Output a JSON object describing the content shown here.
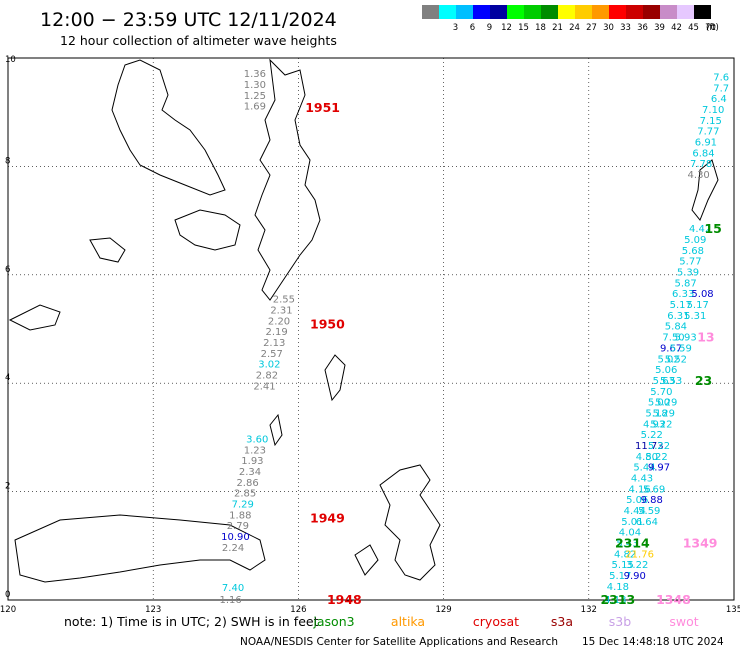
{
  "header": {
    "title": "12:00 − 23:59 UTC 12/11/2024",
    "subtitle": "12 hour collection of altimeter wave heights"
  },
  "legend": {
    "unit": "(ft)",
    "bins": [
      {
        "label": "",
        "color": "#808080"
      },
      {
        "label": "3",
        "color": "#00ffff"
      },
      {
        "label": "6",
        "color": "#00bfff"
      },
      {
        "label": "9",
        "color": "#0000ff"
      },
      {
        "label": "12",
        "color": "#0000a0"
      },
      {
        "label": "15",
        "color": "#00ff00"
      },
      {
        "label": "18",
        "color": "#00cc00"
      },
      {
        "label": "21",
        "color": "#008c00"
      },
      {
        "label": "24",
        "color": "#ffff00"
      },
      {
        "label": "27",
        "color": "#ffcc00"
      },
      {
        "label": "30",
        "color": "#ff9900"
      },
      {
        "label": "33",
        "color": "#ff0000"
      },
      {
        "label": "36",
        "color": "#cc0000"
      },
      {
        "label": "39",
        "color": "#990000"
      },
      {
        "label": "42",
        "color": "#c88cc8"
      },
      {
        "label": "45",
        "color": "#e6c8ff"
      },
      {
        "label": "70",
        "color": "#000000"
      }
    ]
  },
  "map": {
    "lon_range": [
      120,
      135
    ],
    "lat_range": [
      0,
      10
    ],
    "lon_ticks": [
      120,
      123,
      126,
      129,
      132,
      135
    ],
    "lat_ticks": [
      0,
      2,
      4,
      6,
      8,
      10
    ],
    "grid": true
  },
  "tracks": [
    {
      "pass": "1951",
      "pass_lon": 126.5,
      "pass_lat": 9.1,
      "pass_color": "#e00000",
      "points": [
        {
          "lon": 125.1,
          "lat": 9.72,
          "v": "1.36",
          "c": "#808080"
        },
        {
          "lon": 125.1,
          "lat": 9.52,
          "v": "1.30",
          "c": "#808080"
        },
        {
          "lon": 125.1,
          "lat": 9.32,
          "v": "1.25",
          "c": "#808080"
        },
        {
          "lon": 125.1,
          "lat": 9.12,
          "v": "1.69",
          "c": "#808080"
        }
      ]
    },
    {
      "pass": "1950",
      "pass_lon": 126.6,
      "pass_lat": 5.1,
      "pass_color": "#e00000",
      "points": [
        {
          "lon": 125.7,
          "lat": 5.56,
          "v": "2.55",
          "c": "#808080"
        },
        {
          "lon": 125.65,
          "lat": 5.36,
          "v": "2.31",
          "c": "#808080"
        },
        {
          "lon": 125.6,
          "lat": 5.16,
          "v": "2.20",
          "c": "#808080"
        },
        {
          "lon": 125.55,
          "lat": 4.96,
          "v": "2.19",
          "c": "#808080"
        },
        {
          "lon": 125.5,
          "lat": 4.76,
          "v": "2.13",
          "c": "#808080"
        },
        {
          "lon": 125.45,
          "lat": 4.56,
          "v": "2.57",
          "c": "#808080"
        },
        {
          "lon": 125.4,
          "lat": 4.36,
          "v": "3.02",
          "c": "#00c8dc"
        },
        {
          "lon": 125.35,
          "lat": 4.16,
          "v": "2.82",
          "c": "#808080"
        },
        {
          "lon": 125.3,
          "lat": 3.96,
          "v": "2.41",
          "c": "#808080"
        }
      ]
    },
    {
      "pass": "1949",
      "pass_lon": 126.6,
      "pass_lat": 1.52,
      "pass_color": "#e00000",
      "points": [
        {
          "lon": 125.15,
          "lat": 2.98,
          "v": "3.60",
          "c": "#00c8dc"
        },
        {
          "lon": 125.1,
          "lat": 2.78,
          "v": "1.23",
          "c": "#808080"
        },
        {
          "lon": 125.05,
          "lat": 2.58,
          "v": "1.93",
          "c": "#808080"
        },
        {
          "lon": 125.0,
          "lat": 2.38,
          "v": "2.34",
          "c": "#808080"
        },
        {
          "lon": 124.95,
          "lat": 2.18,
          "v": "2.86",
          "c": "#808080"
        },
        {
          "lon": 124.9,
          "lat": 1.98,
          "v": "2.85",
          "c": "#808080"
        },
        {
          "lon": 124.85,
          "lat": 1.78,
          "v": "7.29",
          "c": "#00c8dc"
        },
        {
          "lon": 124.8,
          "lat": 1.58,
          "v": "1.88",
          "c": "#808080"
        },
        {
          "lon": 124.75,
          "lat": 1.38,
          "v": "2.79",
          "c": "#808080"
        },
        {
          "lon": 124.7,
          "lat": 1.18,
          "v": "10.90",
          "c": "#0000cc"
        },
        {
          "lon": 124.65,
          "lat": 0.98,
          "v": "2.24",
          "c": "#808080"
        }
      ]
    },
    {
      "pass": "1948",
      "pass_lon": 126.95,
      "pass_lat": 0.02,
      "pass_color": "#e00000",
      "points": [
        {
          "lon": 124.65,
          "lat": 0.24,
          "v": "7.40",
          "c": "#00c8dc"
        },
        {
          "lon": 124.6,
          "lat": 0.02,
          "v": "1.16",
          "c": "#808080"
        }
      ]
    },
    {
      "pass": "",
      "pass_lon": 0,
      "pass_lat": 0,
      "pass_color": "#00c8dc",
      "points": [
        {
          "lon": 134.9,
          "lat": 9.66,
          "v": "7.6",
          "c": "#00c8dc"
        },
        {
          "lon": 134.9,
          "lat": 9.46,
          "v": "7.7",
          "c": "#00c8dc"
        },
        {
          "lon": 134.85,
          "lat": 9.26,
          "v": "6.4",
          "c": "#00c8dc"
        },
        {
          "lon": 134.8,
          "lat": 9.06,
          "v": "7.10",
          "c": "#00c8dc"
        },
        {
          "lon": 134.75,
          "lat": 8.86,
          "v": "7.15",
          "c": "#00c8dc"
        },
        {
          "lon": 134.7,
          "lat": 8.66,
          "v": "7.77",
          "c": "#00c8dc"
        },
        {
          "lon": 134.65,
          "lat": 8.46,
          "v": "6.91",
          "c": "#00c8dc"
        },
        {
          "lon": 134.6,
          "lat": 8.26,
          "v": "6.84",
          "c": "#00c8dc"
        },
        {
          "lon": 134.55,
          "lat": 8.06,
          "v": "7.78",
          "c": "#00c8dc"
        },
        {
          "lon": 134.5,
          "lat": 7.86,
          "v": "4.30",
          "c": "#808080"
        },
        {
          "lon": 134.3,
          "lat": 6.86,
          "v": "4.42",
          "c": "#00c8dc"
        },
        {
          "lon": 134.2,
          "lat": 6.66,
          "v": "5.09",
          "c": "#00c8dc"
        },
        {
          "lon": 134.15,
          "lat": 6.46,
          "v": "5.68",
          "c": "#00c8dc"
        },
        {
          "lon": 134.1,
          "lat": 6.26,
          "v": "5.77",
          "c": "#00c8dc"
        },
        {
          "lon": 134.05,
          "lat": 6.06,
          "v": "5.39",
          "c": "#00c8dc"
        },
        {
          "lon": 134.0,
          "lat": 5.86,
          "v": "5.87",
          "c": "#00c8dc"
        },
        {
          "lon": 133.95,
          "lat": 5.66,
          "v": "6.33",
          "c": "#00c8dc"
        },
        {
          "lon": 133.9,
          "lat": 5.46,
          "v": "5.17",
          "c": "#00c8dc"
        },
        {
          "lon": 133.85,
          "lat": 5.26,
          "v": "6.31",
          "c": "#00c8dc"
        },
        {
          "lon": 133.8,
          "lat": 5.06,
          "v": "5.84",
          "c": "#00c8dc"
        },
        {
          "lon": 133.75,
          "lat": 4.86,
          "v": "7.50",
          "c": "#00c8dc"
        },
        {
          "lon": 133.7,
          "lat": 4.66,
          "v": "9.67",
          "c": "#0000cc"
        },
        {
          "lon": 133.65,
          "lat": 4.46,
          "v": "5.02",
          "c": "#00c8dc"
        },
        {
          "lon": 133.6,
          "lat": 4.26,
          "v": "5.06",
          "c": "#00c8dc"
        },
        {
          "lon": 133.55,
          "lat": 4.06,
          "v": "5.63",
          "c": "#00c8dc"
        },
        {
          "lon": 133.5,
          "lat": 3.86,
          "v": "5.70",
          "c": "#00c8dc"
        },
        {
          "lon": 133.45,
          "lat": 3.66,
          "v": "5.00",
          "c": "#00c8dc"
        },
        {
          "lon": 133.4,
          "lat": 3.46,
          "v": "5.18",
          "c": "#00c8dc"
        },
        {
          "lon": 133.35,
          "lat": 3.26,
          "v": "4.93",
          "c": "#00c8dc"
        },
        {
          "lon": 133.3,
          "lat": 3.06,
          "v": "5.22",
          "c": "#00c8dc"
        },
        {
          "lon": 133.25,
          "lat": 2.86,
          "v": "11.73",
          "c": "#0000a0"
        },
        {
          "lon": 133.2,
          "lat": 2.66,
          "v": "4.80",
          "c": "#00c8dc"
        },
        {
          "lon": 133.15,
          "lat": 2.46,
          "v": "5.44",
          "c": "#00c8dc"
        },
        {
          "lon": 133.1,
          "lat": 2.26,
          "v": "4.43",
          "c": "#00c8dc"
        },
        {
          "lon": 133.05,
          "lat": 2.06,
          "v": "4.16",
          "c": "#00c8dc"
        },
        {
          "lon": 133.0,
          "lat": 1.86,
          "v": "5.06",
          "c": "#00c8dc"
        },
        {
          "lon": 132.95,
          "lat": 1.66,
          "v": "4.44",
          "c": "#00c8dc"
        },
        {
          "lon": 132.9,
          "lat": 1.46,
          "v": "5.01",
          "c": "#00c8dc"
        },
        {
          "lon": 132.85,
          "lat": 1.26,
          "v": "4.04",
          "c": "#00c8dc"
        },
        {
          "lon": 132.8,
          "lat": 1.06,
          "v": "5.43",
          "c": "#00c8dc"
        },
        {
          "lon": 132.75,
          "lat": 0.86,
          "v": "4.82",
          "c": "#00c8dc"
        },
        {
          "lon": 132.7,
          "lat": 0.66,
          "v": "5.15",
          "c": "#00c8dc"
        },
        {
          "lon": 132.65,
          "lat": 0.46,
          "v": "5.17",
          "c": "#00c8dc"
        },
        {
          "lon": 132.6,
          "lat": 0.26,
          "v": "4.18",
          "c": "#00c8dc"
        },
        {
          "lon": 132.55,
          "lat": 0.02,
          "v": "4.13",
          "c": "#00c8dc"
        }
      ]
    },
    {
      "pass": "",
      "pass_lon": 0,
      "pass_lat": 0,
      "pass_color": "#00c8dc",
      "points": [
        {
          "lon": 134.35,
          "lat": 5.66,
          "v": "5.08",
          "c": "#0000cc"
        },
        {
          "lon": 134.25,
          "lat": 5.46,
          "v": "5.17",
          "c": "#00c8dc"
        },
        {
          "lon": 134.2,
          "lat": 5.26,
          "v": "5.31",
          "c": "#00c8dc"
        },
        {
          "lon": 134.0,
          "lat": 4.86,
          "v": "5.93",
          "c": "#00c8dc"
        },
        {
          "lon": 133.9,
          "lat": 4.66,
          "v": "5.59",
          "c": "#00c8dc"
        },
        {
          "lon": 133.8,
          "lat": 4.46,
          "v": "5.52",
          "c": "#00c8dc"
        },
        {
          "lon": 133.7,
          "lat": 4.06,
          "v": "5.53",
          "c": "#00c8dc"
        },
        {
          "lon": 133.6,
          "lat": 3.66,
          "v": "5.29",
          "c": "#00c8dc"
        },
        {
          "lon": 133.55,
          "lat": 3.46,
          "v": "5.29",
          "c": "#00c8dc"
        },
        {
          "lon": 133.5,
          "lat": 3.26,
          "v": "5.22",
          "c": "#00c8dc"
        },
        {
          "lon": 133.45,
          "lat": 2.86,
          "v": "5.22",
          "c": "#00c8dc"
        },
        {
          "lon": 133.4,
          "lat": 2.66,
          "v": "5.22",
          "c": "#00c8dc"
        },
        {
          "lon": 133.45,
          "lat": 2.46,
          "v": "9.97",
          "c": "#0000cc"
        },
        {
          "lon": 133.35,
          "lat": 2.06,
          "v": "5.69",
          "c": "#00c8dc"
        },
        {
          "lon": 133.3,
          "lat": 1.86,
          "v": "9.88",
          "c": "#0000cc"
        },
        {
          "lon": 133.25,
          "lat": 1.66,
          "v": "5.59",
          "c": "#00c8dc"
        },
        {
          "lon": 133.2,
          "lat": 1.46,
          "v": "6.64",
          "c": "#00c8dc"
        },
        {
          "lon": 133.05,
          "lat": 0.86,
          "v": "21.76",
          "c": "#ffcc00"
        },
        {
          "lon": 133.0,
          "lat": 0.66,
          "v": "3.22",
          "c": "#00c8dc"
        },
        {
          "lon": 132.95,
          "lat": 0.46,
          "v": "9.90",
          "c": "#0000cc"
        }
      ]
    }
  ],
  "pass_labels": [
    {
      "text": "2314",
      "lon": 132.9,
      "lat": 1.06,
      "color": "#008c00"
    },
    {
      "text": "2313",
      "lon": 132.6,
      "lat": 0.02,
      "color": "#008c00"
    },
    {
      "text": "23",
      "lon": 134.55,
      "lat": 4.06,
      "color": "#008c00"
    },
    {
      "text": "15",
      "lon": 134.75,
      "lat": 6.86,
      "color": "#008c00"
    },
    {
      "text": "1349",
      "lon": 134.3,
      "lat": 1.06,
      "color": "#ff8cdc"
    },
    {
      "text": "1348",
      "lon": 133.75,
      "lat": 0.02,
      "color": "#ff8cdc"
    },
    {
      "text": "13",
      "lon": 134.6,
      "lat": 4.86,
      "color": "#ff8cdc"
    }
  ],
  "footer": {
    "note": "note:  1) Time is in UTC;  2) SWH is in feet",
    "missions": [
      {
        "name": "jason3",
        "color": "#008c00"
      },
      {
        "name": "altika",
        "color": "#ff9900"
      },
      {
        "name": "cryosat",
        "color": "#e00000"
      },
      {
        "name": "s3a",
        "color": "#990000"
      },
      {
        "name": "s3b",
        "color": "#c8a0e6"
      },
      {
        "name": "swot",
        "color": "#ff8cdc"
      }
    ],
    "credit": "NOAA/NESDIS Center for Satellite Applications and Research",
    "timestamp": "15 Dec 14:48:18 UTC 2024"
  }
}
